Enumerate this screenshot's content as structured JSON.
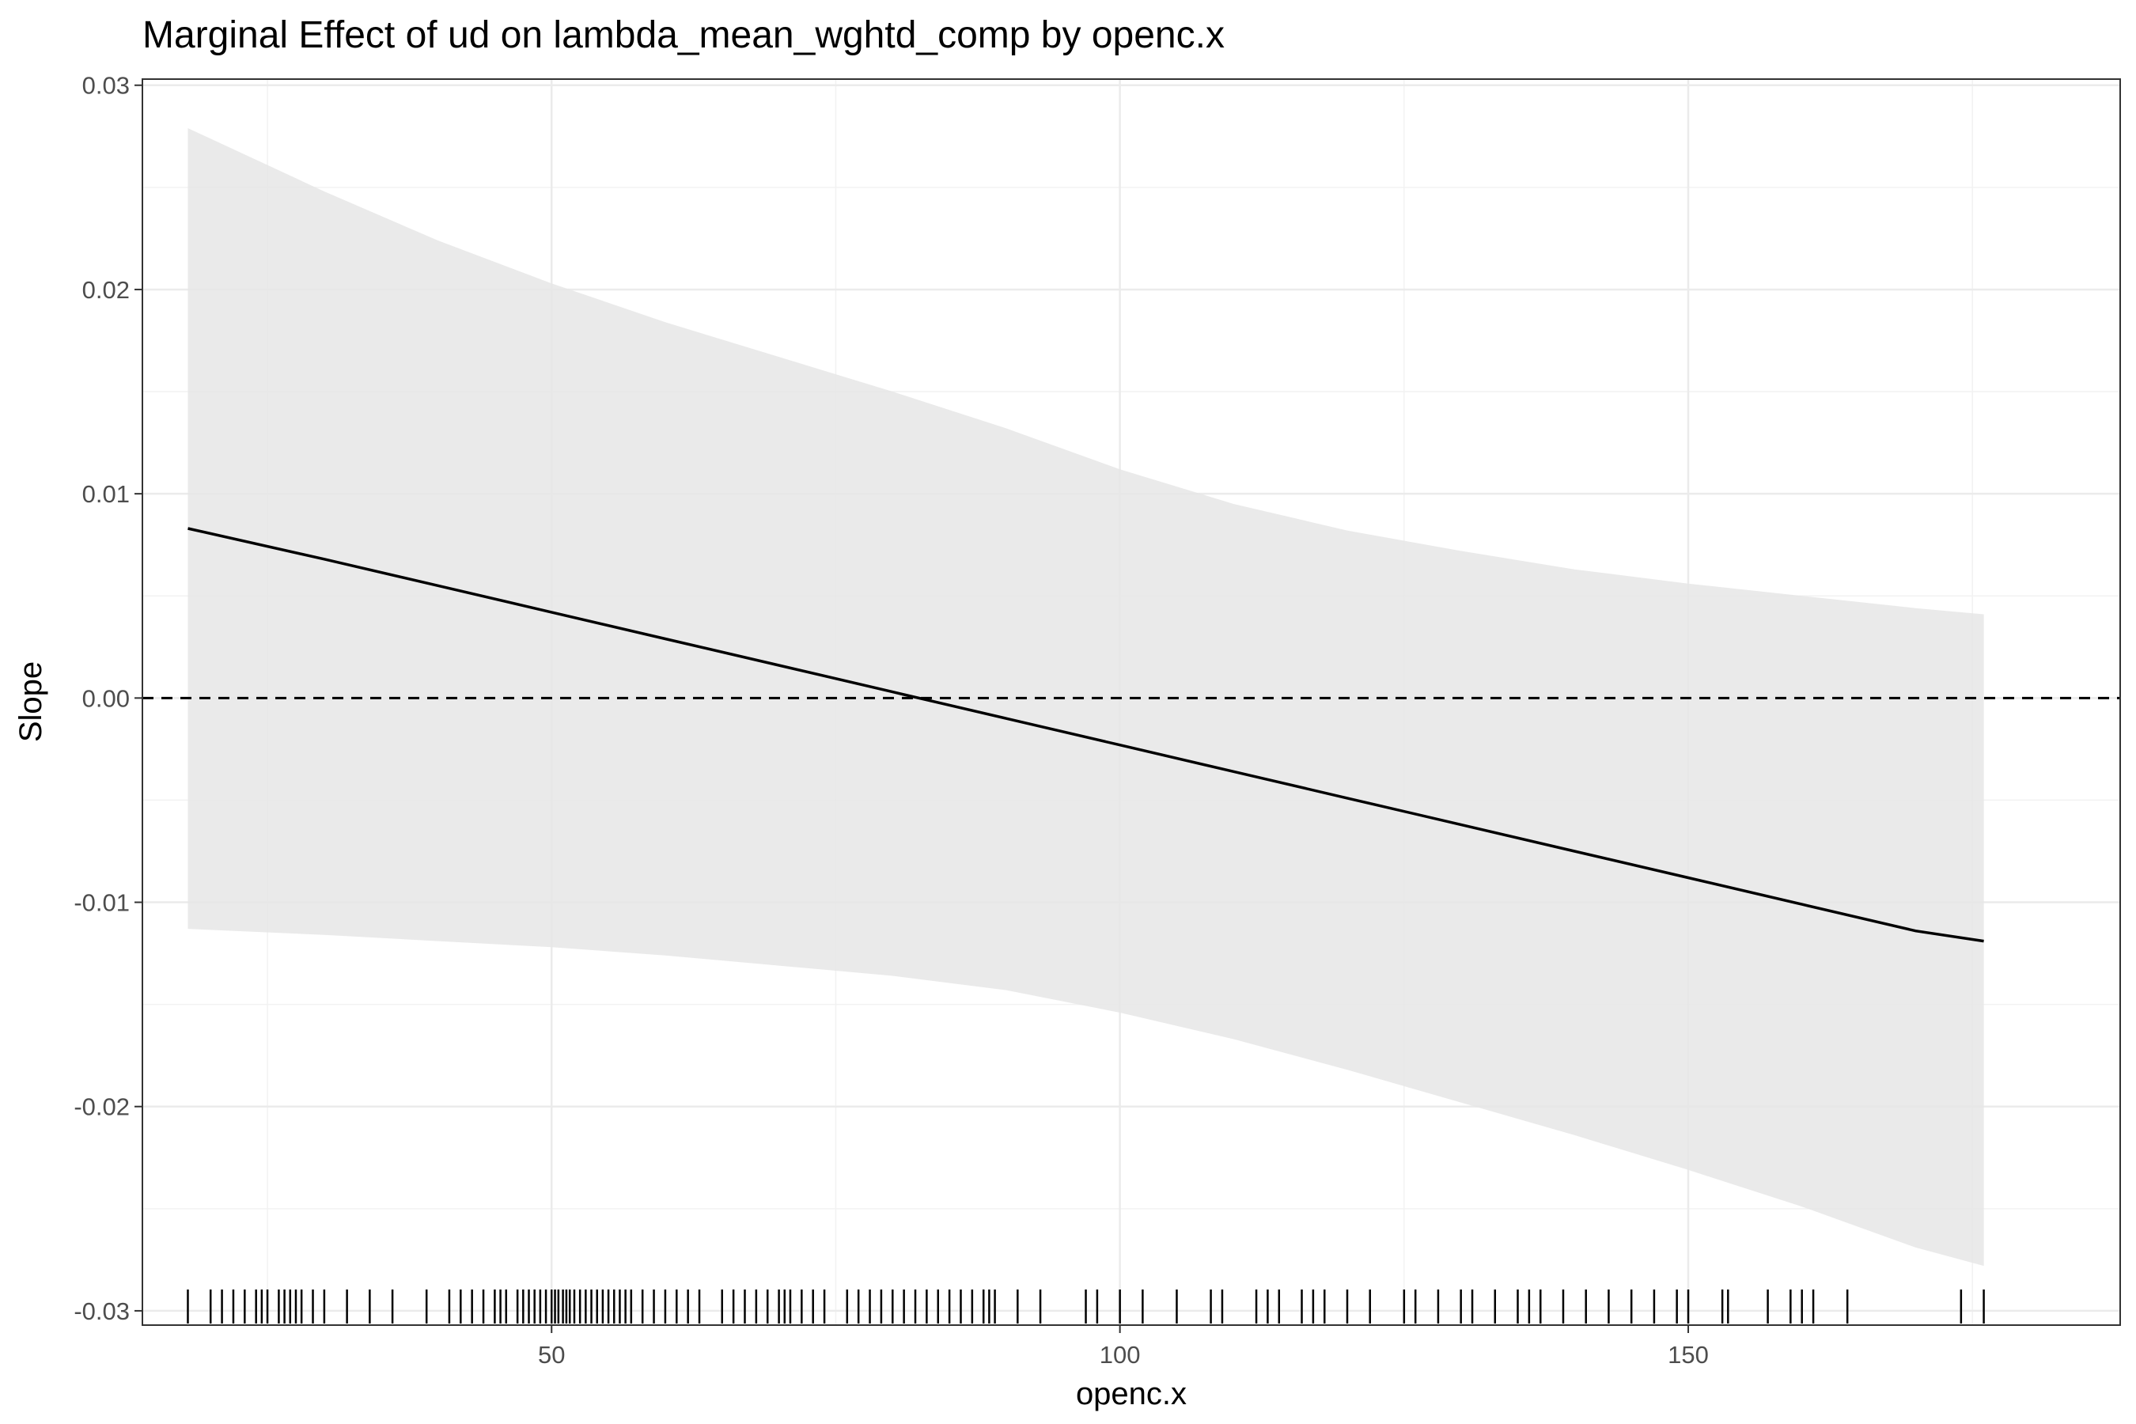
{
  "chart_data": {
    "type": "line",
    "title": "Marginal Effect of ud on lambda_mean_wghtd_comp by openc.x",
    "xlabel": "openc.x",
    "ylabel": "Slope",
    "xlim": [
      14,
      188
    ],
    "ylim": [
      -0.0307,
      0.0303
    ],
    "x_ticks": [
      50,
      100,
      150
    ],
    "x_tick_labels": [
      "50",
      "100",
      "150"
    ],
    "y_ticks": [
      -0.03,
      -0.02,
      -0.01,
      0.0,
      0.01,
      0.02,
      0.03
    ],
    "y_tick_labels": [
      "-0.03",
      "-0.02",
      "-0.01",
      "0.00",
      "0.01",
      "0.02",
      "0.03"
    ],
    "grid": true,
    "reference_line": {
      "y": 0.0,
      "style": "dashed"
    },
    "series": [
      {
        "x": [
          18,
          30,
          40,
          50,
          60,
          70,
          80,
          90,
          100,
          110,
          120,
          130,
          140,
          150,
          160,
          170,
          176
        ],
        "y": [
          0.0083,
          0.0068,
          0.0055,
          0.0042,
          0.0029,
          0.0016,
          0.0003,
          -0.001,
          -0.0023,
          -0.0036,
          -0.0049,
          -0.0062,
          -0.0075,
          -0.0088,
          -0.0101,
          -0.0114,
          -0.0119
        ],
        "ci_upper": [
          0.0279,
          0.0248,
          0.0224,
          0.0203,
          0.0184,
          0.0167,
          0.015,
          0.0132,
          0.0112,
          0.0095,
          0.0082,
          0.0072,
          0.0063,
          0.0056,
          0.005,
          0.0044,
          0.0041
        ],
        "ci_lower": [
          -0.0113,
          -0.0116,
          -0.0119,
          -0.0122,
          -0.0126,
          -0.0131,
          -0.0136,
          -0.0143,
          -0.0154,
          -0.0167,
          -0.0182,
          -0.0198,
          -0.0214,
          -0.0231,
          -0.0249,
          -0.0269,
          -0.0278
        ]
      }
    ],
    "rug": [
      18,
      20,
      21,
      22,
      23,
      24,
      24.5,
      25,
      26,
      26.5,
      27,
      27.5,
      28,
      29,
      30,
      32,
      34,
      36,
      39,
      41,
      42,
      43,
      44,
      45,
      45.5,
      46,
      47,
      47.5,
      48,
      48.5,
      49,
      49.5,
      50,
      50.3,
      50.6,
      51,
      51.3,
      51.6,
      52,
      52.5,
      53,
      53.5,
      54,
      54.5,
      55,
      55.5,
      56,
      56.5,
      57,
      58,
      59,
      60,
      61,
      62,
      63,
      65,
      66,
      67,
      68,
      69,
      70,
      70.5,
      71,
      72,
      73,
      74,
      76,
      77,
      78,
      79,
      80,
      81,
      82,
      83,
      84,
      85,
      86,
      87,
      88,
      88.5,
      89,
      91,
      93,
      97,
      98,
      100,
      102,
      105,
      108,
      109,
      112,
      113,
      114,
      116,
      117,
      118,
      120,
      122,
      125,
      126,
      128,
      130,
      131,
      133,
      135,
      136,
      137,
      139,
      141,
      143,
      145,
      147,
      149,
      150,
      153,
      153.5,
      157,
      159,
      160,
      161,
      164,
      174,
      176
    ]
  }
}
